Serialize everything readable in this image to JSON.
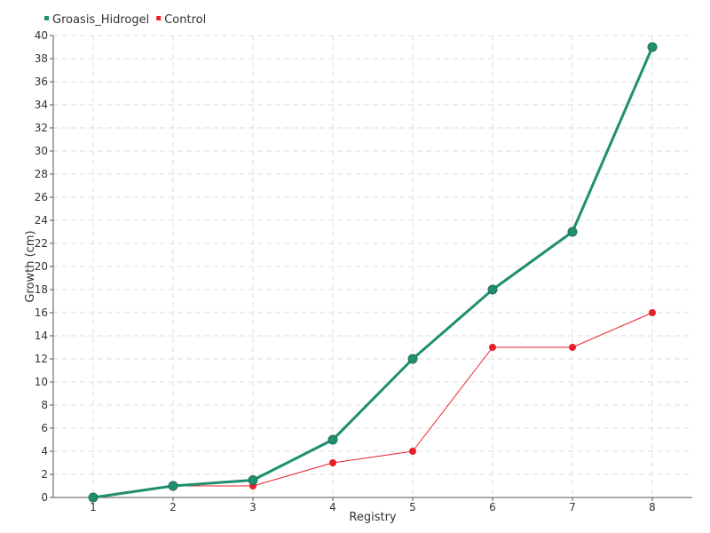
{
  "chart_data": {
    "type": "line",
    "title": "",
    "xlabel": "Registry",
    "ylabel": "Growth (cm)",
    "x": [
      1,
      2,
      3,
      4,
      5,
      6,
      7,
      8
    ],
    "ylim": [
      0,
      40
    ],
    "ytick_step": 2,
    "grid": true,
    "legend_position": "top-left",
    "series": [
      {
        "name": "Groasis_Hidrogel",
        "color": "#1f8f70",
        "values": [
          0,
          1,
          1.5,
          5,
          12,
          18,
          23,
          39
        ]
      },
      {
        "name": "Control",
        "color": "#e8202a",
        "values": [
          0,
          1,
          1,
          3,
          4,
          13,
          13,
          16
        ]
      }
    ]
  }
}
